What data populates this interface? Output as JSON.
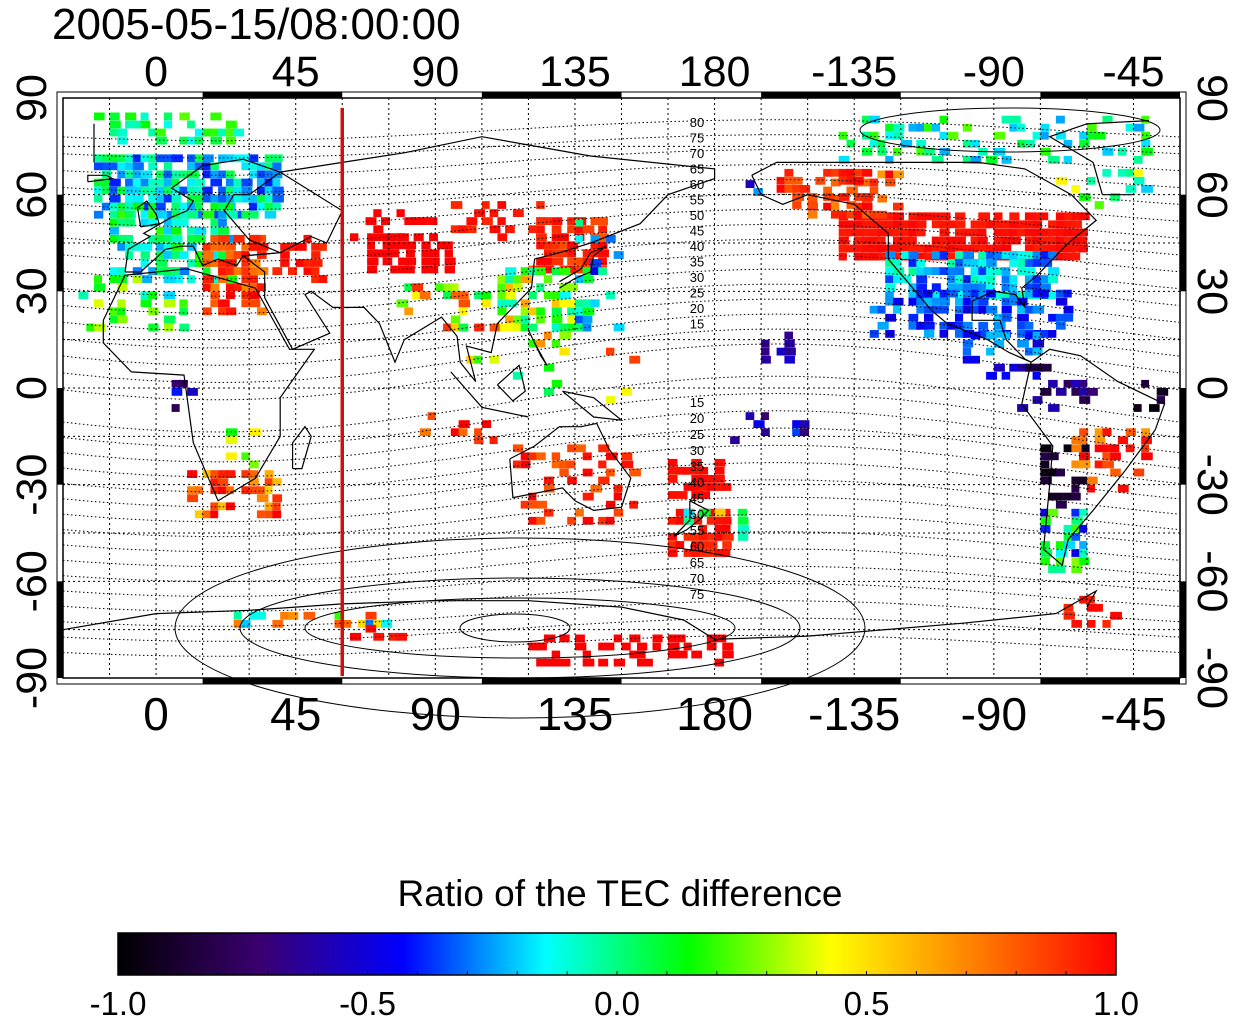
{
  "title": "2005-05-15/08:00:00",
  "map": {
    "top_lon_ticks": [
      "0",
      "45",
      "90",
      "135",
      "180",
      "-135",
      "-90",
      "-45"
    ],
    "bottom_lon_ticks": [
      "0",
      "45",
      "90",
      "135",
      "180",
      "-135",
      "-90",
      "-45"
    ],
    "left_lat_ticks": [
      "90",
      "60",
      "30",
      "0",
      "-30",
      "-60",
      "-90"
    ],
    "right_lat_ticks": [
      "90",
      "60",
      "30",
      "0",
      "-30",
      "-60",
      "-90"
    ],
    "marker_longitude": 60,
    "marker_color": "#cc1111",
    "contour_labels_north": [
      "80",
      "75",
      "70",
      "65",
      "60",
      "55",
      "50",
      "45",
      "40",
      "35",
      "30",
      "25",
      "20",
      "15"
    ],
    "contour_labels_south": [
      "15",
      "20",
      "25",
      "30",
      "35",
      "40",
      "45",
      "50",
      "55",
      "60",
      "65",
      "70",
      "75"
    ]
  },
  "colorbar": {
    "title": "Ratio of the TEC difference",
    "ticks": [
      "-1.0",
      "-0.5",
      "0.0",
      "0.5",
      "1.0"
    ],
    "colors": [
      "#000000",
      "#3a0070",
      "#0000ff",
      "#00ffff",
      "#00ff00",
      "#ffff00",
      "#ff8000",
      "#ff0000"
    ]
  }
}
